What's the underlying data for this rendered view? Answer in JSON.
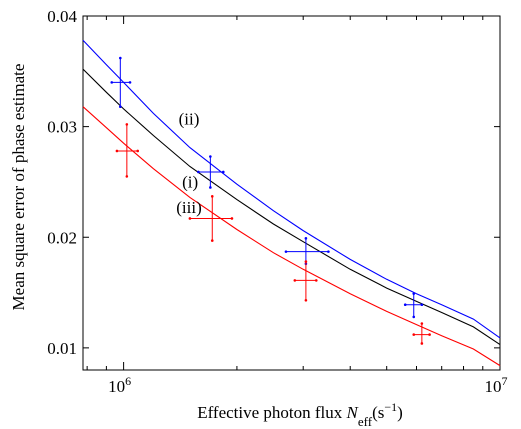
{
  "chart_data": {
    "type": "line",
    "xlabel": "Effective photon flux",
    "xlabel_symbol": "N",
    "xlabel_subscript": "eff",
    "xlabel_unit_open": "(s",
    "xlabel_unit_exp": "−1",
    "xlabel_unit_close": ")",
    "ylabel": "Mean square error of phase estimate",
    "x_scale": "log",
    "xlim": [
      780000,
      10000000
    ],
    "ylim": [
      0.008,
      0.04
    ],
    "grid": false,
    "x_ticks": [
      {
        "value": 1000000,
        "base": "10",
        "exp": "6"
      },
      {
        "value": 10000000,
        "base": "10",
        "exp": "7"
      }
    ],
    "y_ticks": [
      {
        "value": 0.01,
        "label": "0.01"
      },
      {
        "value": 0.02,
        "label": "0.02"
      },
      {
        "value": 0.03,
        "label": "0.03"
      },
      {
        "value": 0.04,
        "label": "0.04"
      }
    ],
    "series": [
      {
        "label": "(i)",
        "color": "#000000",
        "curve": [
          [
            780000,
            0.0352
          ],
          [
            900000,
            0.0331
          ],
          [
            1000000,
            0.0316
          ],
          [
            1200000,
            0.0292
          ],
          [
            1500000,
            0.0264
          ],
          [
            2000000,
            0.0234
          ],
          [
            2500000,
            0.0212
          ],
          [
            3000000,
            0.0196
          ],
          [
            4000000,
            0.0171
          ],
          [
            5000000,
            0.0154
          ],
          [
            6000000,
            0.0142
          ],
          [
            7000000,
            0.0132
          ],
          [
            8500000,
            0.0119
          ],
          [
            10000000,
            0.0103
          ]
        ],
        "points": []
      },
      {
        "label": "(ii)",
        "color": "#0000ff",
        "curve": [
          [
            780000,
            0.0378
          ],
          [
            900000,
            0.0356
          ],
          [
            1000000,
            0.034
          ],
          [
            1200000,
            0.0312
          ],
          [
            1500000,
            0.0281
          ],
          [
            2000000,
            0.0248
          ],
          [
            2500000,
            0.0224
          ],
          [
            3000000,
            0.0206
          ],
          [
            4000000,
            0.018
          ],
          [
            5000000,
            0.0162
          ],
          [
            6000000,
            0.0149
          ],
          [
            7000000,
            0.0139
          ],
          [
            8500000,
            0.0126
          ],
          [
            10000000,
            0.0109
          ]
        ],
        "points": [
          {
            "x": 980000,
            "y": 0.034,
            "x_err": [
              930000,
              1040000
            ],
            "y_err": [
              0.0318,
              0.0362
            ]
          },
          {
            "x": 1700000,
            "y": 0.0259,
            "x_err": [
              1580000,
              1840000
            ],
            "y_err": [
              0.0245,
              0.0273
            ]
          },
          {
            "x": 3050000,
            "y": 0.0187,
            "x_err": [
              2700000,
              3500000
            ],
            "y_err": [
              0.0176,
              0.0199
            ]
          },
          {
            "x": 5900000,
            "y": 0.0139,
            "x_err": [
              5600000,
              6200000
            ],
            "y_err": [
              0.0128,
              0.0149
            ]
          }
        ]
      },
      {
        "label": "(iii)",
        "color": "#ff0000",
        "curve": [
          [
            780000,
            0.0318
          ],
          [
            900000,
            0.0299
          ],
          [
            1000000,
            0.0285
          ],
          [
            1200000,
            0.0262
          ],
          [
            1500000,
            0.0236
          ],
          [
            2000000,
            0.0207
          ],
          [
            2500000,
            0.0186
          ],
          [
            3000000,
            0.0171
          ],
          [
            4000000,
            0.0149
          ],
          [
            5000000,
            0.0133
          ],
          [
            6000000,
            0.0121
          ],
          [
            7000000,
            0.0111
          ],
          [
            8500000,
            0.0099
          ],
          [
            10000000,
            0.0084
          ]
        ],
        "points": [
          {
            "x": 1020000,
            "y": 0.0278,
            "x_err": [
              960000,
              1090000
            ],
            "y_err": [
              0.0255,
              0.0302
            ]
          },
          {
            "x": 1720000,
            "y": 0.0217,
            "x_err": [
              1500000,
              1940000
            ],
            "y_err": [
              0.0197,
              0.0237
            ]
          },
          {
            "x": 3050000,
            "y": 0.0161,
            "x_err": [
              2850000,
              3250000
            ],
            "y_err": [
              0.0143,
              0.0178
            ]
          },
          {
            "x": 6200000,
            "y": 0.0112,
            "x_err": [
              5900000,
              6500000
            ],
            "y_err": [
              0.0104,
              0.0122
            ]
          }
        ]
      }
    ],
    "annotations": [
      {
        "text": "(ii)",
        "x": 1400000,
        "y": 0.0302
      },
      {
        "text": "(i)",
        "x": 1430000,
        "y": 0.0245
      },
      {
        "text": "(iii)",
        "x": 1380000,
        "y": 0.0222
      }
    ]
  }
}
